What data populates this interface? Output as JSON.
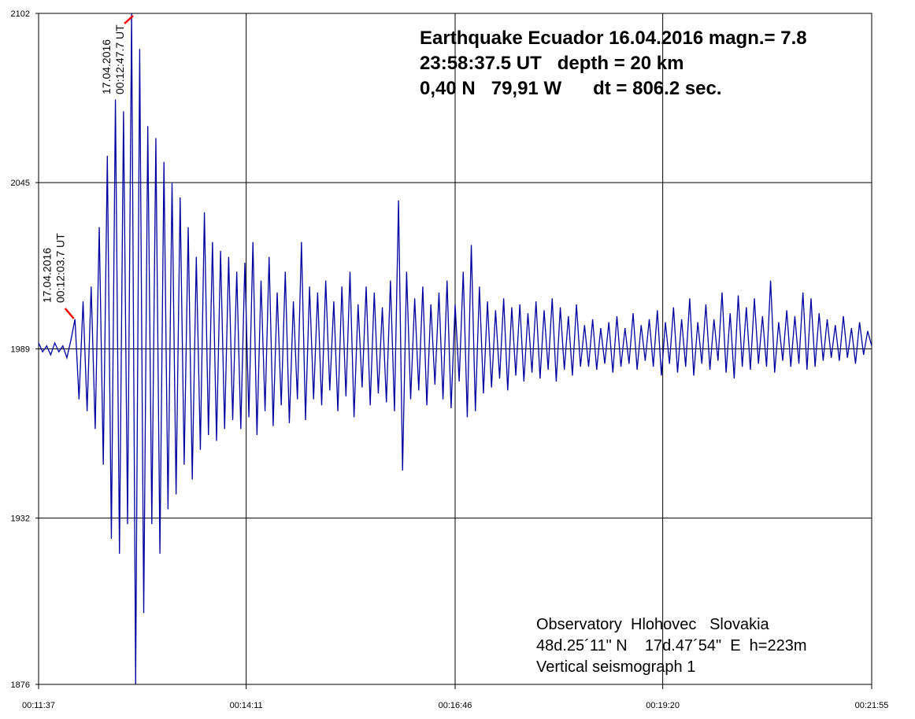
{
  "chart_data": {
    "type": "line",
    "title_lines": [
      "Earthquake Ecuador 16.04.2016 magn.= 7.8",
      "23:58:37.5 UT   depth = 20 km",
      "0,40 N   79,91 W      dt = 806.2 sec."
    ],
    "footer_lines": [
      "Observatory  Hlohovec   Slovakia",
      "48d.25´11\" N    17d.47´54\"  E  h=223m",
      "Vertical seismograph 1"
    ],
    "annotations": [
      {
        "x": 723.7,
        "lines": [
          "17.04.2016",
          "00:12:03.7 UT"
        ],
        "color": "#ff0000"
      },
      {
        "x": 767.7,
        "lines": [
          "17.04.2016",
          "00:12:47.7 UT"
        ],
        "color": "#ff0000"
      }
    ],
    "xlim": [
      697,
      1315
    ],
    "xticks": [
      {
        "value": 697,
        "label": "00:11:37"
      },
      {
        "value": 851,
        "label": "00:14:11"
      },
      {
        "value": 1006,
        "label": "00:16:46"
      },
      {
        "value": 1160,
        "label": "00:19:20"
      },
      {
        "value": 1315,
        "label": "00:21:55"
      }
    ],
    "ylim": [
      1876,
      2102
    ],
    "yticks": [
      1876,
      1932,
      1989,
      2045,
      2102
    ],
    "grid": true,
    "x": [
      697,
      700,
      703,
      706,
      709,
      712,
      715,
      718,
      721,
      724,
      727,
      730,
      733,
      736,
      739,
      742,
      745,
      748,
      751,
      754,
      757,
      760,
      763,
      766,
      769,
      772,
      775,
      778,
      781,
      784,
      787,
      790,
      793,
      796,
      799,
      802,
      805,
      808,
      811,
      814,
      817,
      820,
      823,
      826,
      829,
      832,
      835,
      838,
      841,
      844,
      847,
      850,
      853,
      856,
      859,
      862,
      865,
      868,
      871,
      874,
      877,
      880,
      883,
      886,
      889,
      892,
      895,
      898,
      901,
      904,
      907,
      910,
      913,
      916,
      919,
      922,
      925,
      928,
      931,
      934,
      937,
      940,
      943,
      946,
      949,
      952,
      955,
      958,
      961,
      964,
      967,
      970,
      973,
      976,
      979,
      982,
      985,
      988,
      991,
      994,
      997,
      1000,
      1003,
      1006,
      1009,
      1012,
      1015,
      1018,
      1021,
      1024,
      1027,
      1030,
      1033,
      1036,
      1039,
      1042,
      1045,
      1048,
      1051,
      1054,
      1057,
      1060,
      1063,
      1066,
      1069,
      1072,
      1075,
      1078,
      1081,
      1084,
      1087,
      1090,
      1093,
      1096,
      1099,
      1102,
      1105,
      1108,
      1111,
      1114,
      1117,
      1120,
      1123,
      1126,
      1129,
      1132,
      1135,
      1138,
      1141,
      1144,
      1147,
      1150,
      1153,
      1156,
      1159,
      1162,
      1165,
      1168,
      1171,
      1174,
      1177,
      1180,
      1183,
      1186,
      1189,
      1192,
      1195,
      1198,
      1201,
      1204,
      1207,
      1210,
      1213,
      1216,
      1219,
      1222,
      1225,
      1228,
      1231,
      1234,
      1237,
      1240,
      1243,
      1246,
      1249,
      1252,
      1255,
      1258,
      1261,
      1264,
      1267,
      1270,
      1273,
      1276,
      1279,
      1282,
      1285,
      1288,
      1291,
      1294,
      1297,
      1300,
      1303,
      1306,
      1309,
      1312,
      1315
    ],
    "series": [
      {
        "color": "#0000a0",
        "values": [
          1991,
          1988,
          1990,
          1987,
          1991,
          1988,
          1990,
          1986,
          1992,
          1999,
          1972,
          2005,
          1968,
          2010,
          1962,
          2030,
          1950,
          2054,
          1925,
          2073,
          1920,
          2069,
          1930,
          2102,
          1876,
          2090,
          1900,
          2064,
          1930,
          2060,
          1920,
          2052,
          1935,
          2045,
          1940,
          2040,
          1950,
          2030,
          1945,
          2020,
          1955,
          2035,
          1960,
          2025,
          1958,
          2022,
          1962,
          2020,
          1965,
          2015,
          1962,
          2018,
          1966,
          2025,
          1960,
          2012,
          1968,
          2020,
          1963,
          2008,
          1970,
          2015,
          1964,
          2005,
          1972,
          2025,
          1965,
          2010,
          1972,
          2008,
          1970,
          2012,
          1975,
          2005,
          1968,
          2010,
          1973,
          2015,
          1966,
          2004,
          1976,
          2010,
          1970,
          2008,
          1974,
          2003,
          1971,
          2012,
          1968,
          2039,
          1948,
          2015,
          1972,
          2006,
          1975,
          2010,
          1970,
          2004,
          1977,
          2008,
          1972,
          2012,
          1969,
          2004,
          1978,
          2015,
          1966,
          2024,
          1968,
          2010,
          1974,
          2005,
          1976,
          2002,
          1979,
          2006,
          1975,
          2003,
          1980,
          2004,
          1978,
          2001,
          1981,
          2005,
          1979,
          2002,
          1982,
          2006,
          1978,
          2003,
          1982,
          2000,
          1980,
          2004,
          1983,
          1997,
          1983,
          1999,
          1982,
          1996,
          1984,
          1998,
          1981,
          2000,
          1983,
          1996,
          1984,
          2001,
          1982,
          1997,
          1985,
          1999,
          1983,
          2002,
          1980,
          1998,
          1984,
          2003,
          1981,
          1999,
          1983,
          2006,
          1980,
          1998,
          1984,
          2004,
          1982,
          1999,
          1985,
          2008,
          1981,
          2001,
          1979,
          2007,
          1983,
          2003,
          1982,
          2006,
          1984,
          2000,
          1983,
          2012,
          1981,
          1998,
          1985,
          2002,
          1983,
          2000,
          1984,
          2008,
          1982,
          2006,
          1983,
          2001,
          1985,
          1999,
          1986,
          1997,
          1985,
          2000,
          1986,
          1996,
          1984,
          1998,
          1987,
          1995,
          1990
        ]
      }
    ]
  }
}
